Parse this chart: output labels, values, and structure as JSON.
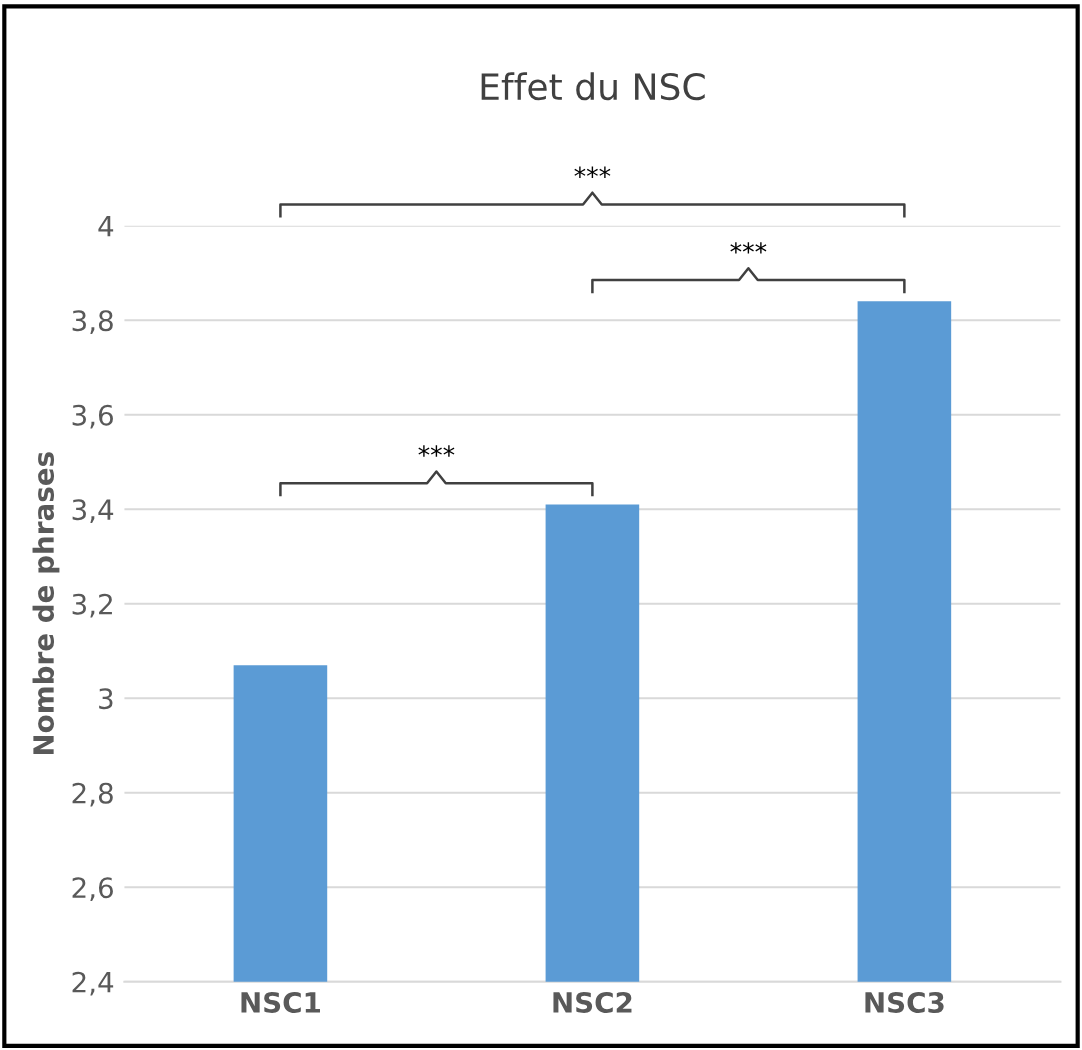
{
  "chart_data": {
    "type": "bar",
    "title": "Effet du NSC",
    "ylabel": "Nombre de phrases",
    "categories": [
      "NSC1",
      "NSC2",
      "NSC3"
    ],
    "values": [
      3.07,
      3.41,
      3.84
    ],
    "color": "#5b9bd5",
    "ylim": [
      2.4,
      4.0
    ],
    "yticks": [
      {
        "value": 2.4,
        "label": "2,4"
      },
      {
        "value": 2.6,
        "label": "2,6"
      },
      {
        "value": 2.8,
        "label": "2,8"
      },
      {
        "value": 3,
        "label": "3"
      },
      {
        "value": 3.2,
        "label": "3,2"
      },
      {
        "value": 3.4,
        "label": "3,4"
      },
      {
        "value": 3.6,
        "label": "3,6"
      },
      {
        "value": 3.8,
        "label": "3,8"
      },
      {
        "value": 4,
        "label": "4"
      }
    ],
    "grid": "y",
    "annotations": [
      "***",
      "***",
      "***"
    ]
  }
}
